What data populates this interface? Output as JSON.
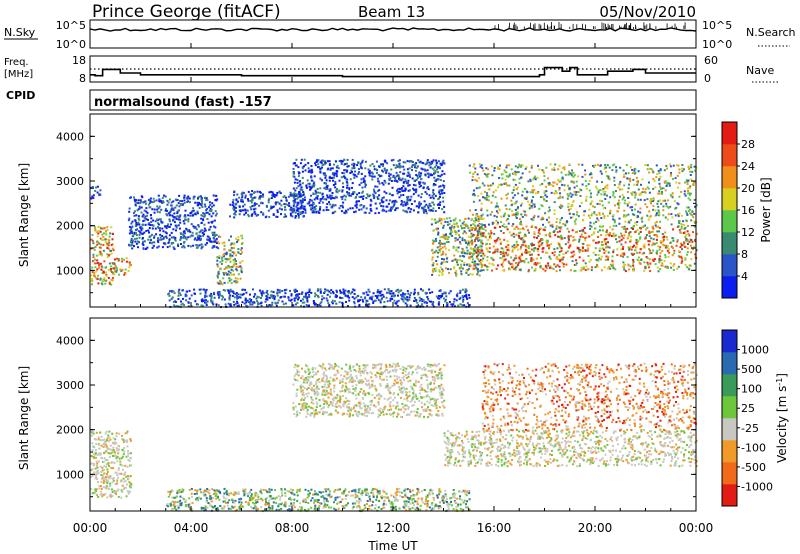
{
  "header": {
    "station": "Prince George (fitACF)",
    "beam": "Beam 13",
    "date": "05/Nov/2010"
  },
  "noise_panel": {
    "left_label": "N.Sky",
    "left_ticks": [
      "10^5",
      "10^0"
    ],
    "right_label": "N.Search",
    "right_ticks": [
      "10^5",
      "10^0"
    ]
  },
  "freq_panel": {
    "left_label_1": "Freq.",
    "left_label_2": "[MHz]",
    "left_ticks": [
      "18",
      "8"
    ],
    "right_label": "Nave",
    "right_ticks": [
      "60",
      "0"
    ]
  },
  "cpid": {
    "label": "CPID",
    "value": "normalsound (fast) -157"
  },
  "x_axis": {
    "label": "Time UT",
    "ticks": [
      "00:00",
      "04:00",
      "08:00",
      "12:00",
      "16:00",
      "20:00",
      "00:00"
    ]
  },
  "power_panel": {
    "y_label": "Slant Range [km]",
    "y_ticks": [
      "1000",
      "2000",
      "3000",
      "4000"
    ],
    "colorbar_label": "Power [dB]",
    "colorbar_ticks": [
      "4",
      "8",
      "12",
      "16",
      "20",
      "24",
      "28"
    ],
    "colorbar_colors": [
      "#0a1ef0",
      "#2a55c8",
      "#3a8a72",
      "#5cc84a",
      "#d8d020",
      "#f0901a",
      "#f04a1a",
      "#e41a14"
    ]
  },
  "velocity_panel": {
    "y_label": "Slant Range [km]",
    "y_ticks": [
      "1000",
      "2000",
      "3000",
      "4000"
    ],
    "colorbar_label": "Velocity [m s",
    "colorbar_label_sup": "-1",
    "colorbar_label_end": "]",
    "colorbar_ticks": [
      "1000",
      "500",
      "100",
      "25",
      "-25",
      "-100",
      "-500",
      "-1000"
    ],
    "colorbar_colors": [
      "#1a2ad0",
      "#2a6ab0",
      "#3a9a5a",
      "#6cc83a",
      "#c8c8c0",
      "#f09a2a",
      "#f06a1a",
      "#e41a14"
    ]
  },
  "chart_data": {
    "type": "heatmap",
    "x_range_hours": [
      0,
      24
    ],
    "y_range_km": [
      180,
      4500
    ],
    "grid": false,
    "frequency_mhz": [
      [
        0.0,
        12
      ],
      [
        0.2,
        11.5
      ],
      [
        0.5,
        15
      ],
      [
        1.0,
        15
      ],
      [
        1.2,
        13
      ],
      [
        2.0,
        12
      ],
      [
        4.0,
        12
      ],
      [
        6.0,
        11.5
      ],
      [
        8.0,
        11.5
      ],
      [
        10.0,
        11
      ],
      [
        12.0,
        11
      ],
      [
        14.0,
        11
      ],
      [
        16.0,
        11
      ],
      [
        17.8,
        12
      ],
      [
        18.0,
        16
      ],
      [
        18.7,
        14
      ],
      [
        19.0,
        16
      ],
      [
        19.3,
        12
      ],
      [
        20.5,
        14
      ],
      [
        21.5,
        15
      ],
      [
        22.0,
        13
      ],
      [
        24.0,
        13
      ]
    ],
    "nave_dotted_level": 25,
    "power_regions": [
      {
        "t": [
          0.0,
          0.9
        ],
        "r": [
          700,
          2000
        ],
        "level": "high"
      },
      {
        "t": [
          0.9,
          1.6
        ],
        "r": [
          900,
          1300
        ],
        "level": "high"
      },
      {
        "t": [
          0.0,
          0.4
        ],
        "r": [
          2600,
          2900
        ],
        "level": "low"
      },
      {
        "t": [
          1.5,
          5.0
        ],
        "r": [
          1500,
          2700
        ],
        "level": "low"
      },
      {
        "t": [
          5.0,
          6.0
        ],
        "r": [
          700,
          1800
        ],
        "level": "medium"
      },
      {
        "t": [
          5.5,
          8.5
        ],
        "r": [
          2200,
          2800
        ],
        "level": "low"
      },
      {
        "t": [
          8.0,
          14.0
        ],
        "r": [
          2300,
          3500
        ],
        "level": "low"
      },
      {
        "t": [
          3.0,
          15.0
        ],
        "r": [
          200,
          600
        ],
        "level": "low"
      },
      {
        "t": [
          13.5,
          15.5
        ],
        "r": [
          900,
          2200
        ],
        "level": "medium"
      },
      {
        "t": [
          15.0,
          24.0
        ],
        "r": [
          1000,
          2000
        ],
        "level": "high"
      },
      {
        "t": [
          15.0,
          24.0
        ],
        "r": [
          2000,
          3400
        ],
        "level": "medium"
      }
    ],
    "velocity_regions": [
      {
        "t": [
          0.0,
          1.6
        ],
        "r": [
          500,
          2000
        ],
        "sign": "near-zero"
      },
      {
        "t": [
          8.0,
          14.0
        ],
        "r": [
          2300,
          3500
        ],
        "sign": "near-zero"
      },
      {
        "t": [
          14.0,
          24.0
        ],
        "r": [
          1200,
          2000
        ],
        "sign": "near-zero"
      },
      {
        "t": [
          15.5,
          24.0
        ],
        "r": [
          2000,
          3500
        ],
        "sign": "negative (-100 to -500)"
      },
      {
        "t": [
          3.0,
          15.0
        ],
        "r": [
          200,
          700
        ],
        "sign": "positive (25 to 100)"
      }
    ]
  }
}
